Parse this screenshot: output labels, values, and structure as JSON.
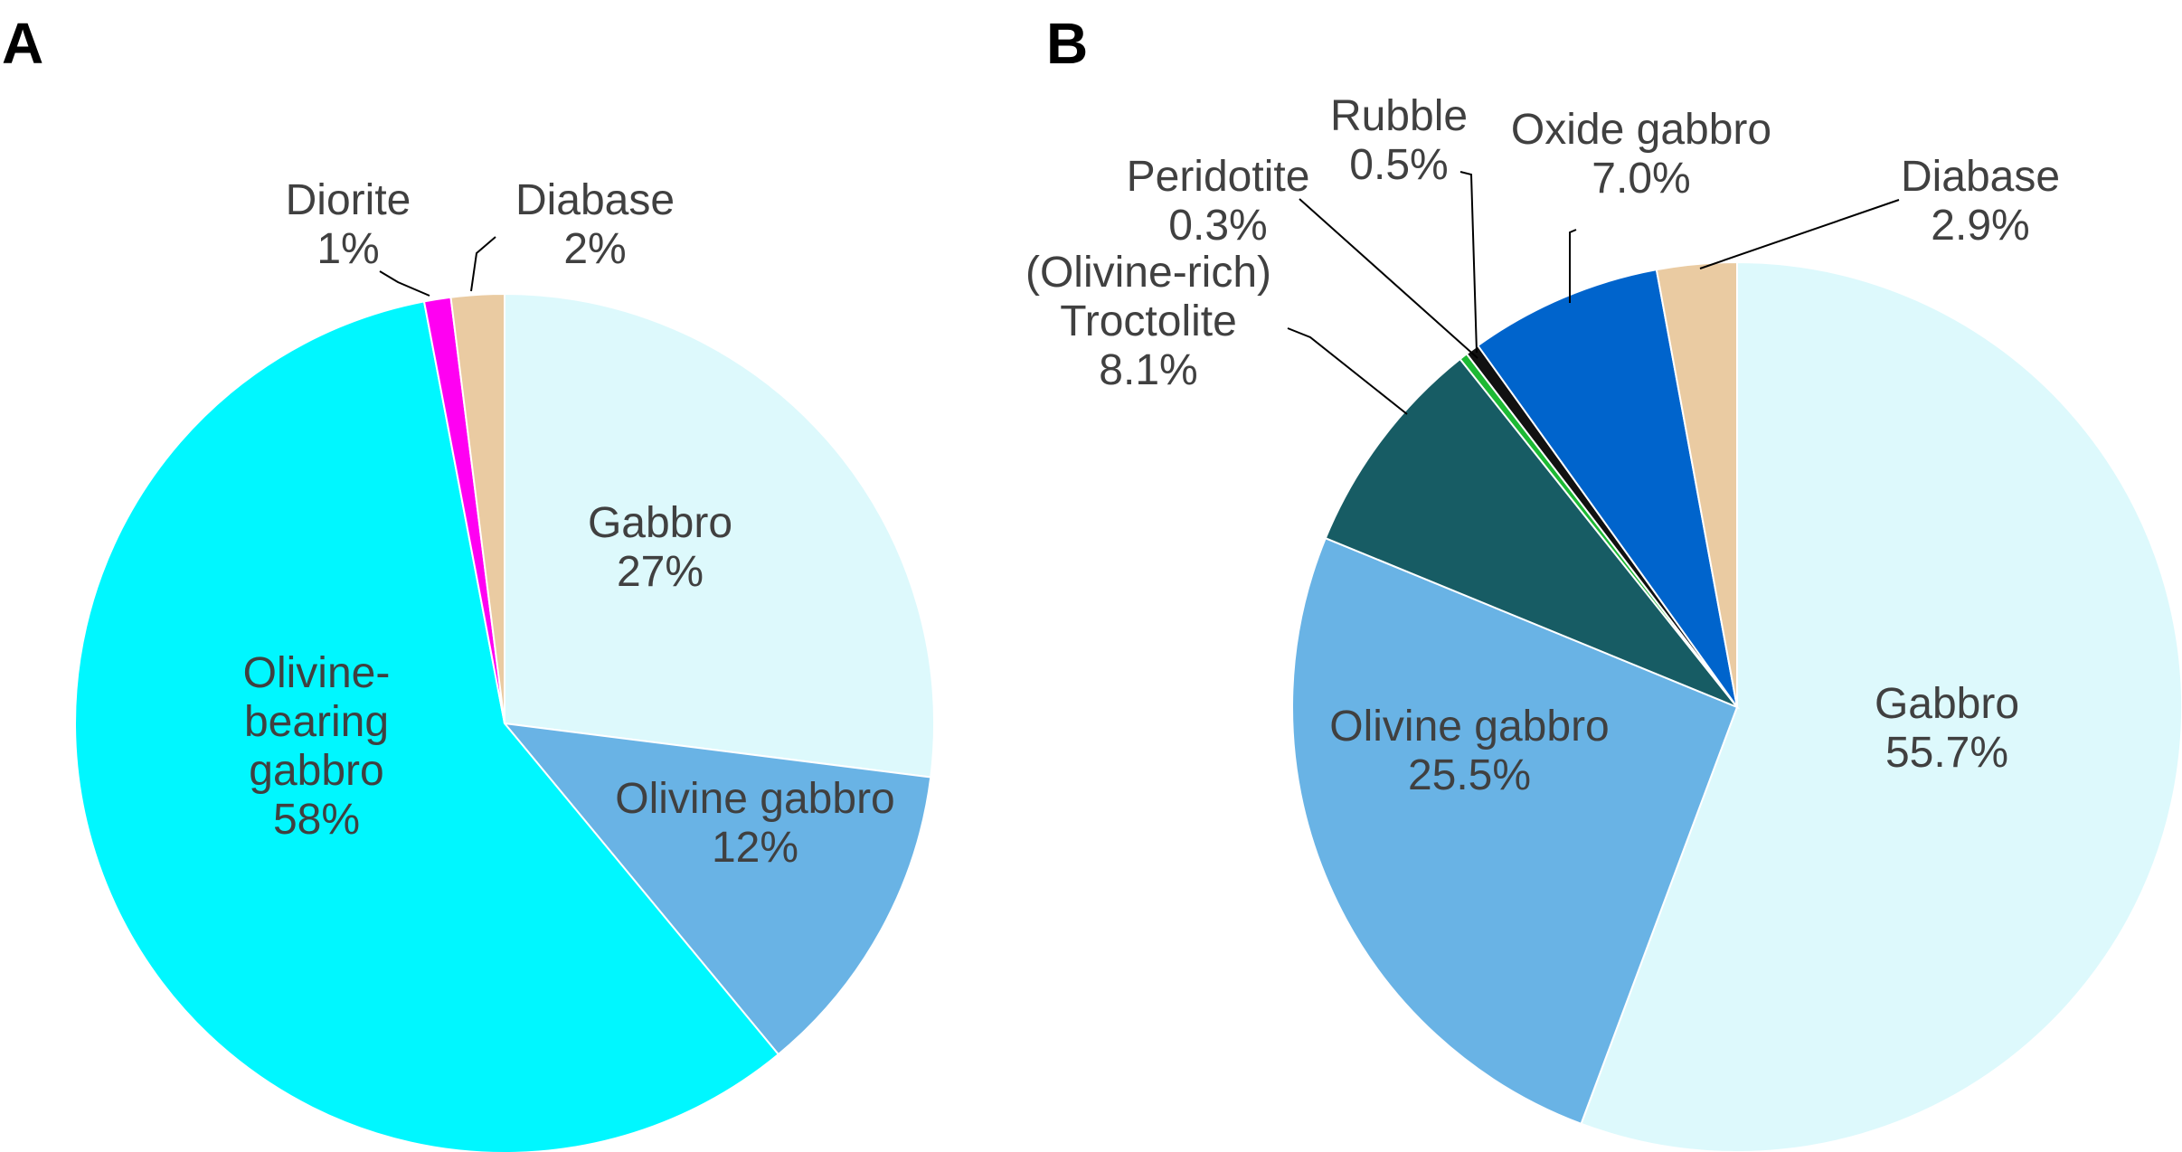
{
  "chart_data": [
    {
      "type": "pie",
      "panel": "A",
      "start": "top, clockwise",
      "slices": [
        {
          "name": "Gabbro",
          "value": 27,
          "display": "27%",
          "color": "#DDF9FC"
        },
        {
          "name": "Olivine gabbro",
          "value": 12,
          "display": "12%",
          "color": "#69B3E5"
        },
        {
          "name": "Olivine-bearing gabbro",
          "value": 58,
          "display": "58%",
          "color": "#00F7FF"
        },
        {
          "name": "Diorite",
          "value": 1,
          "display": "1%",
          "color": "#FF00F2"
        },
        {
          "name": "Diabase",
          "value": 2,
          "display": "2%",
          "color": "#EACBA2"
        }
      ],
      "labels": [
        {
          "lines": [
            "Gabbro",
            "27%"
          ]
        },
        {
          "lines": [
            "Olivine gabbro",
            "12%"
          ]
        },
        {
          "lines": [
            "Olivine-",
            "bearing",
            "gabbro",
            "58%"
          ]
        },
        {
          "lines": [
            "Diorite",
            "1%"
          ]
        },
        {
          "lines": [
            "Diabase",
            "2%"
          ]
        }
      ]
    },
    {
      "type": "pie",
      "panel": "B",
      "start": "top, clockwise",
      "slices": [
        {
          "name": "Gabbro",
          "value": 55.7,
          "display": "55.7%",
          "color": "#DDF9FC"
        },
        {
          "name": "Olivine gabbro",
          "value": 25.5,
          "display": "25.5%",
          "color": "#69B3E5"
        },
        {
          "name": "(Olivine-rich) Troctolite",
          "value": 8.1,
          "display": "8.1%",
          "color": "#175C64"
        },
        {
          "name": "Peridotite",
          "value": 0.3,
          "display": "0.3%",
          "color": "#1DB934"
        },
        {
          "name": "Rubble",
          "value": 0.5,
          "display": "0.5%",
          "color": "#111111"
        },
        {
          "name": "Oxide gabbro",
          "value": 7.0,
          "display": "7.0%",
          "color": "#0064CC"
        },
        {
          "name": "Diabase",
          "value": 2.9,
          "display": "2.9%",
          "color": "#EACBA2"
        }
      ],
      "labels": [
        {
          "lines": [
            "Gabbro",
            "55.7%"
          ]
        },
        {
          "lines": [
            "Olivine gabbro",
            "25.5%"
          ]
        },
        {
          "lines": [
            "(Olivine-rich)",
            "Troctolite",
            "8.1%"
          ]
        },
        {
          "lines": [
            "Peridotite",
            "0.3%"
          ]
        },
        {
          "lines": [
            "Rubble",
            "0.5%"
          ]
        },
        {
          "lines": [
            "Oxide gabbro",
            "7.0%"
          ]
        },
        {
          "lines": [
            "Diabase",
            "2.9%"
          ]
        }
      ]
    }
  ]
}
